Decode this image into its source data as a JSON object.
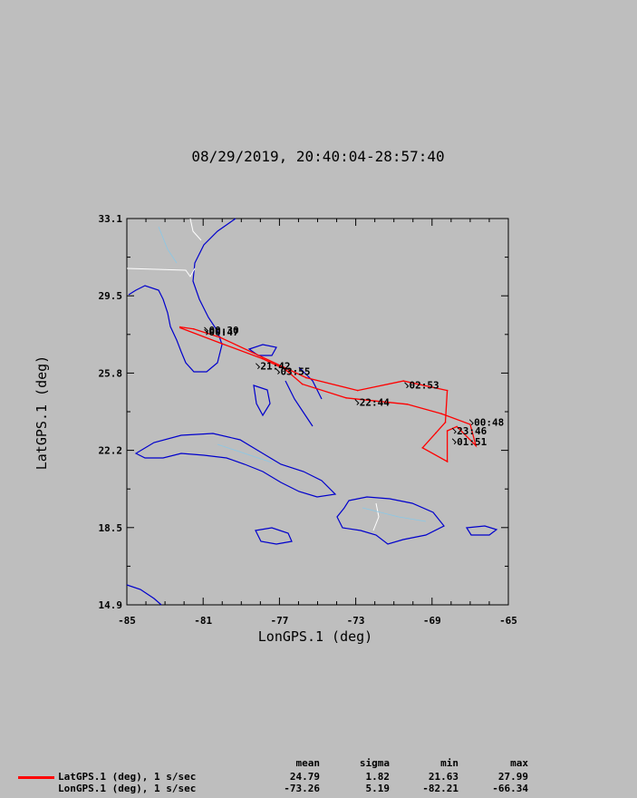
{
  "chart_data": {
    "type": "line",
    "title": "08/29/2019, 20:40:04-28:57:40",
    "xlabel": "LonGPS.1 (deg)",
    "ylabel": "LatGPS.1 (deg)",
    "xlim": [
      -85,
      -65
    ],
    "ylim": [
      14.9,
      33.1
    ],
    "x_ticks": [
      "-85",
      "-81",
      "-77",
      "-73",
      "-69",
      "-65"
    ],
    "y_ticks": [
      "14.9",
      "18.5",
      "22.2",
      "25.8",
      "29.5",
      "33.1"
    ],
    "grid": false,
    "map_background": true,
    "series": [
      {
        "name": "LatGPS.1 (deg), 1 s/sec",
        "color": "#ff0000",
        "points": [
          [
            -82.2,
            27.95
          ],
          [
            -80.0,
            27.2
          ],
          [
            -77.9,
            26.5
          ],
          [
            -76.7,
            26.0
          ],
          [
            -75.8,
            25.3
          ],
          [
            -73.5,
            24.65
          ],
          [
            -70.3,
            24.35
          ],
          [
            -68.5,
            23.9
          ],
          [
            -67.0,
            23.4
          ],
          [
            -66.7,
            22.4
          ],
          [
            -67.7,
            23.3
          ],
          [
            -68.2,
            23.1
          ],
          [
            -68.2,
            21.65
          ],
          [
            -69.5,
            22.3
          ],
          [
            -68.8,
            23.0
          ],
          [
            -68.3,
            23.5
          ],
          [
            -68.2,
            25.0
          ],
          [
            -70.5,
            25.45
          ],
          [
            -72.9,
            25.0
          ],
          [
            -75.6,
            25.6
          ],
          [
            -80.1,
            27.5
          ],
          [
            -81.5,
            27.9
          ],
          [
            -82.21,
            27.99
          ]
        ]
      }
    ],
    "time_labels": [
      {
        "text": "00:30",
        "lon": -80.7,
        "lat": 27.85
      },
      {
        "text": "00:47",
        "lon": -80.7,
        "lat": 27.75
      },
      {
        "text": "21:42",
        "lon": -78.0,
        "lat": 26.15
      },
      {
        "text": "03:55",
        "lon": -76.95,
        "lat": 25.9
      },
      {
        "text": "02:53",
        "lon": -70.2,
        "lat": 25.25
      },
      {
        "text": "22:44",
        "lon": -72.8,
        "lat": 24.45
      },
      {
        "text": "00:48",
        "lon": -66.8,
        "lat": 23.5
      },
      {
        "text": "23:46",
        "lon": -67.7,
        "lat": 23.1
      },
      {
        "text": "01:51",
        "lon": -67.7,
        "lat": 22.6
      }
    ]
  },
  "stats": {
    "headers": [
      "mean",
      "sigma",
      "min",
      "max"
    ],
    "rows": [
      {
        "label": "LatGPS.1 (deg), 1 s/sec",
        "color": "#ff0000",
        "mean": "24.79",
        "sigma": "1.82",
        "min": "21.63",
        "max": "27.99"
      },
      {
        "label": "LonGPS.1 (deg), 1 s/sec",
        "color": "",
        "mean": "-73.26",
        "sigma": "5.19",
        "min": "-82.21",
        "max": "-66.34"
      }
    ]
  }
}
